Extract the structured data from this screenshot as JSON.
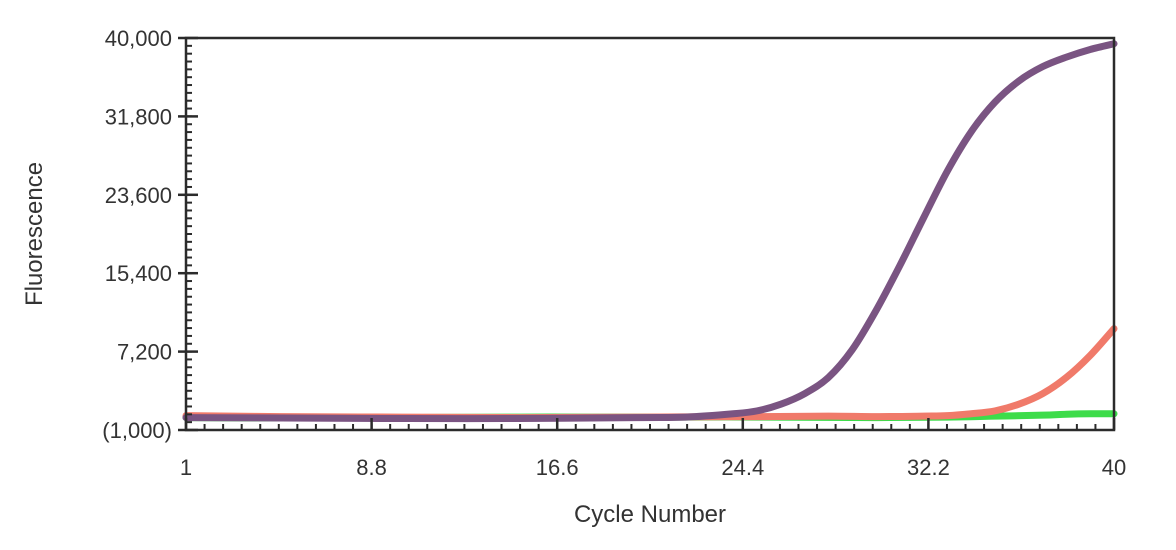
{
  "chart_data": {
    "type": "line",
    "title": "",
    "xlabel": "Cycle Number",
    "ylabel": "Fluorescence",
    "xlim": [
      1,
      40
    ],
    "ylim": [
      -1000,
      40000
    ],
    "x_ticks": [
      1,
      8.8,
      16.6,
      24.4,
      32.2,
      40
    ],
    "x_tick_labels": [
      "1",
      "8.8",
      "16.6",
      "24.4",
      "32.2",
      "40"
    ],
    "y_ticks": [
      -1000,
      7200,
      15400,
      23600,
      31800,
      40000
    ],
    "y_tick_labels": [
      "(1,000)",
      "7,200",
      "15,400",
      "23,600",
      "31,800",
      "40,000"
    ],
    "grid": false,
    "legend": "none",
    "series": [
      {
        "color": "#3ddc4a",
        "x": [
          1,
          5,
          10,
          15,
          20,
          25,
          30,
          33,
          35,
          37,
          38,
          39,
          40
        ],
        "y": [
          300,
          250,
          300,
          350,
          350,
          350,
          300,
          350,
          450,
          550,
          650,
          700,
          700
        ]
      },
      {
        "color": "#f07a6a",
        "x": [
          1,
          5,
          10,
          15,
          20,
          25,
          28,
          30,
          32,
          33,
          34,
          35,
          36,
          37,
          38,
          39,
          40
        ],
        "y": [
          500,
          400,
          350,
          300,
          350,
          400,
          450,
          400,
          450,
          500,
          700,
          1000,
          1700,
          2800,
          4500,
          6800,
          9600
        ]
      },
      {
        "color": "#7a5482",
        "x": [
          1,
          5,
          10,
          15,
          20,
          22,
          24,
          25,
          26,
          27,
          28,
          29,
          30,
          31,
          32,
          33,
          34,
          35,
          36,
          37,
          38,
          39,
          40
        ],
        "y": [
          300,
          250,
          200,
          200,
          300,
          350,
          700,
          1000,
          1700,
          2800,
          4500,
          7400,
          11500,
          16200,
          21200,
          26100,
          30200,
          33300,
          35500,
          37000,
          38000,
          38800,
          39400
        ]
      }
    ]
  }
}
